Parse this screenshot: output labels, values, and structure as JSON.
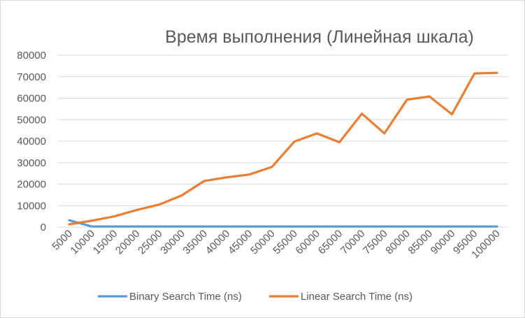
{
  "chart_data": {
    "type": "line",
    "title": "Время выполнения (Линейная шкала)",
    "xlabel": "",
    "ylabel": "",
    "categories": [
      "5000",
      "10000",
      "15000",
      "20000",
      "25000",
      "30000",
      "35000",
      "40000",
      "45000",
      "50000",
      "55000",
      "60000",
      "65000",
      "70000",
      "75000",
      "80000",
      "85000",
      "90000",
      "95000",
      "100000"
    ],
    "ylim": [
      0,
      80000
    ],
    "yticks": [
      "0",
      "10000",
      "20000",
      "30000",
      "40000",
      "50000",
      "60000",
      "70000",
      "80000"
    ],
    "grid": true,
    "legend_position": "bottom",
    "series": [
      {
        "name": "Binary Search Time (ns)",
        "color": "#5b9bd5",
        "values": [
          3200,
          300,
          300,
          300,
          300,
          300,
          300,
          300,
          300,
          300,
          300,
          300,
          300,
          300,
          300,
          300,
          300,
          300,
          300,
          300
        ]
      },
      {
        "name": "Linear Search Time (ns)",
        "color": "#ed7d31",
        "values": [
          1300,
          3000,
          5000,
          8000,
          10500,
          14800,
          21500,
          23200,
          24500,
          28000,
          39800,
          43600,
          39500,
          52800,
          43600,
          59300,
          60800,
          52500,
          71500,
          71800
        ]
      }
    ]
  }
}
